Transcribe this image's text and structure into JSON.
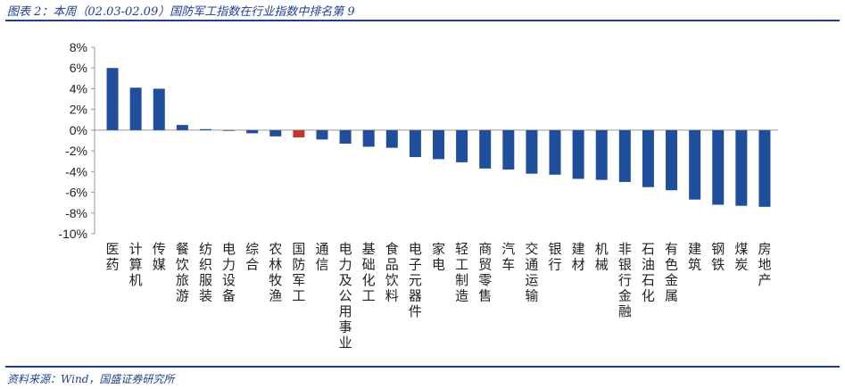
{
  "header": {
    "title": "图表 2：本周（02.03-02.09）国防军工指数在行业指数中排名第 9"
  },
  "footer": {
    "source": "资料来源：Wind，国盛证券研究所"
  },
  "colors": {
    "bar": "#1f4e9c",
    "highlight": "#c0392b",
    "axis": "#999999"
  },
  "chart_data": {
    "type": "bar",
    "categories": [
      "医药",
      "计算机",
      "传媒",
      "餐饮旅游",
      "纺织服装",
      "电力设备",
      "综合",
      "农林牧渔",
      "国防军工",
      "通信",
      "电力及公用事业",
      "基础化工",
      "食品饮料",
      "电子元器件",
      "家电",
      "轻工制造",
      "商贸零售",
      "汽车",
      "交通运输",
      "银行",
      "建材",
      "机械",
      "非银行金融",
      "石油石化",
      "有色金属",
      "建筑",
      "钢铁",
      "煤炭",
      "房地产"
    ],
    "values": [
      6.0,
      4.1,
      4.0,
      0.5,
      0.1,
      0.0,
      -0.3,
      -0.6,
      -0.7,
      -0.9,
      -1.3,
      -1.6,
      -1.7,
      -2.6,
      -2.8,
      -3.1,
      -3.7,
      -3.8,
      -4.2,
      -4.3,
      -4.7,
      -4.8,
      -5.0,
      -5.5,
      -5.8,
      -6.7,
      -7.2,
      -7.3,
      -7.4
    ],
    "highlight_category": "国防军工",
    "ylim": [
      -10,
      8
    ],
    "yticks": [
      8,
      6,
      4,
      2,
      0,
      -2,
      -4,
      -6,
      -8,
      -10
    ],
    "ytick_labels": [
      "8%",
      "6%",
      "4%",
      "2%",
      "0%",
      "-2%",
      "-4%",
      "-6%",
      "-8%",
      "-10%"
    ],
    "grid": false,
    "legend": "none"
  }
}
